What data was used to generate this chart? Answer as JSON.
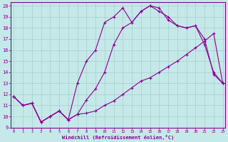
{
  "xlabel": "Windchill (Refroidissement éolien,°C)",
  "bg_color": "#c5e8e8",
  "grid_color": "#aacccc",
  "line_color": "#880099",
  "xlim": [
    0,
    23
  ],
  "ylim": [
    9,
    20
  ],
  "xticks": [
    0,
    1,
    2,
    3,
    4,
    5,
    6,
    7,
    8,
    9,
    10,
    11,
    12,
    13,
    14,
    15,
    16,
    17,
    18,
    19,
    20,
    21,
    22,
    23
  ],
  "yticks": [
    9,
    10,
    11,
    12,
    13,
    14,
    15,
    16,
    17,
    18,
    19,
    20
  ],
  "line1_x": [
    0,
    1,
    2,
    3,
    4,
    5,
    6,
    7,
    8,
    9,
    10,
    11,
    12,
    13,
    14,
    15,
    16,
    17,
    18,
    19,
    20,
    21,
    22,
    23
  ],
  "line1_y": [
    11.8,
    11.0,
    11.2,
    9.5,
    10.0,
    10.5,
    9.7,
    10.2,
    10.3,
    10.5,
    11.0,
    11.4,
    12.0,
    12.6,
    13.2,
    13.5,
    14.0,
    14.5,
    15.0,
    15.6,
    16.2,
    16.8,
    17.5,
    13.0
  ],
  "line2_x": [
    0,
    1,
    2,
    3,
    4,
    5,
    6,
    7,
    8,
    9,
    10,
    11,
    12,
    13,
    14,
    15,
    16,
    17,
    18,
    19,
    20,
    21,
    22,
    23
  ],
  "line2_y": [
    11.8,
    11.0,
    11.2,
    9.5,
    10.0,
    10.5,
    9.7,
    10.2,
    11.5,
    12.5,
    14.0,
    16.5,
    18.0,
    18.5,
    19.5,
    20.0,
    19.5,
    19.0,
    18.2,
    18.0,
    18.2,
    17.0,
    13.8,
    13.0
  ],
  "line3_x": [
    0,
    1,
    2,
    3,
    4,
    5,
    6,
    7,
    8,
    9,
    10,
    11,
    12,
    13,
    14,
    15,
    16,
    17,
    18,
    19,
    20,
    21,
    22,
    23
  ],
  "line3_y": [
    11.8,
    11.0,
    11.2,
    9.5,
    10.0,
    10.5,
    9.7,
    13.0,
    15.0,
    16.0,
    18.5,
    19.0,
    19.8,
    18.5,
    19.5,
    20.0,
    19.8,
    18.7,
    18.2,
    18.0,
    18.2,
    16.5,
    14.0,
    13.0
  ]
}
